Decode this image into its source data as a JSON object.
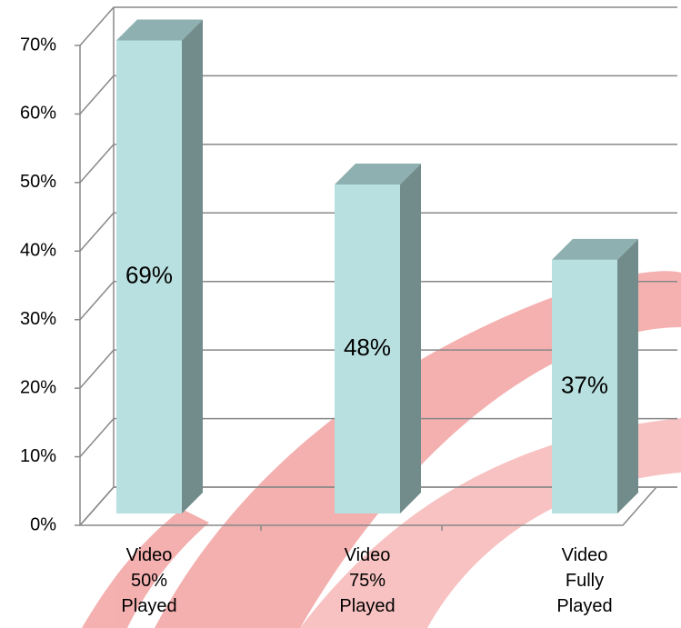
{
  "chart_data": {
    "type": "bar3d",
    "categories": [
      "Video 50% Played",
      "Video 75% Played",
      "Video Fully Played"
    ],
    "values": [
      69,
      48,
      37
    ],
    "value_labels": [
      "69%",
      "48%",
      "37%"
    ],
    "color": "#b9e0e0",
    "ylim": [
      0,
      70
    ],
    "yticks": [
      {
        "value": 0,
        "label": "0%"
      },
      {
        "value": 10,
        "label": "10%"
      },
      {
        "value": 20,
        "label": "20%"
      },
      {
        "value": 30,
        "label": "30%"
      },
      {
        "value": 40,
        "label": "40%"
      },
      {
        "value": 50,
        "label": "50%"
      },
      {
        "value": 60,
        "label": "60%"
      },
      {
        "value": 70,
        "label": "70%"
      }
    ],
    "grid": true
  }
}
